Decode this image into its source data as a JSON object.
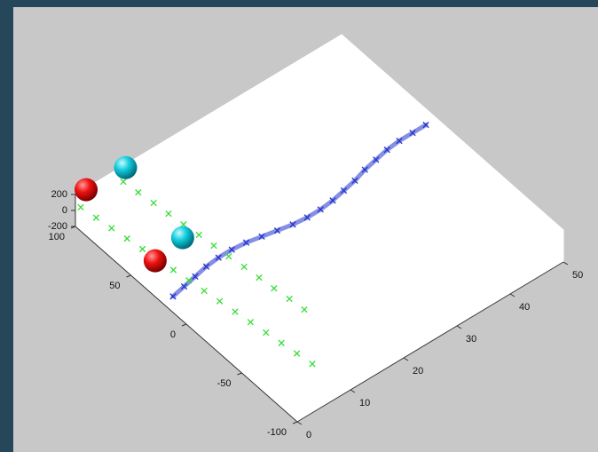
{
  "chart_data": {
    "type": "scatter3d",
    "xlim": [
      0,
      50
    ],
    "ylim": [
      -100,
      100
    ],
    "zlim": [
      -200,
      200
    ],
    "xticks": [
      0,
      10,
      20,
      30,
      40,
      50
    ],
    "yticks": [
      -100,
      -50,
      0,
      50,
      100
    ],
    "zticks": [
      -200,
      0,
      200
    ],
    "series": [
      {
        "marker": "x",
        "color": "#33dd33",
        "z": 0,
        "x": [
          1,
          1.4,
          1.8,
          2.2,
          2.6,
          3,
          3.4,
          3.8,
          4.2,
          4.6,
          5,
          5.4,
          5.8,
          6.2,
          6.6,
          7
        ],
        "y": [
          100,
          88,
          76,
          64,
          52,
          40,
          28,
          16,
          4,
          -8,
          -20,
          -32,
          -44,
          -56,
          -68,
          -80
        ]
      },
      {
        "marker": "x",
        "color": "#33dd33",
        "z": 0,
        "x": [
          9,
          9.3,
          9.7,
          10,
          10.3,
          10.7,
          11,
          11.3,
          11.7,
          12,
          12.3,
          12.7,
          13
        ],
        "y": [
          100,
          88,
          76,
          64,
          52,
          40,
          28,
          16,
          4,
          -8,
          -20,
          -32,
          -44
        ]
      },
      {
        "marker": "x",
        "color": "#2233cc",
        "z": 0,
        "x": [
          0,
          2.5,
          5,
          7.5,
          10,
          12.5,
          15,
          17.5,
          20,
          22.5,
          25,
          27.5,
          30,
          32.5,
          35,
          37.5,
          40,
          42.5,
          45,
          47.5,
          50
        ],
        "y": [
          12,
          14,
          16,
          18,
          19,
          19,
          18,
          16,
          14,
          12,
          11,
          11,
          12,
          14,
          16,
          19,
          21,
          23,
          24,
          24,
          24
        ]
      },
      {
        "marker": "sphere",
        "color": "#ee1111",
        "z": 200,
        "x": [
          1.8,
          0.5
        ],
        "y": [
          99,
          30.5
        ]
      },
      {
        "marker": "sphere",
        "color": "#11ccdd",
        "z": 200,
        "x": [
          9,
          6.5
        ],
        "y": [
          98,
          34.5
        ]
      }
    ]
  }
}
